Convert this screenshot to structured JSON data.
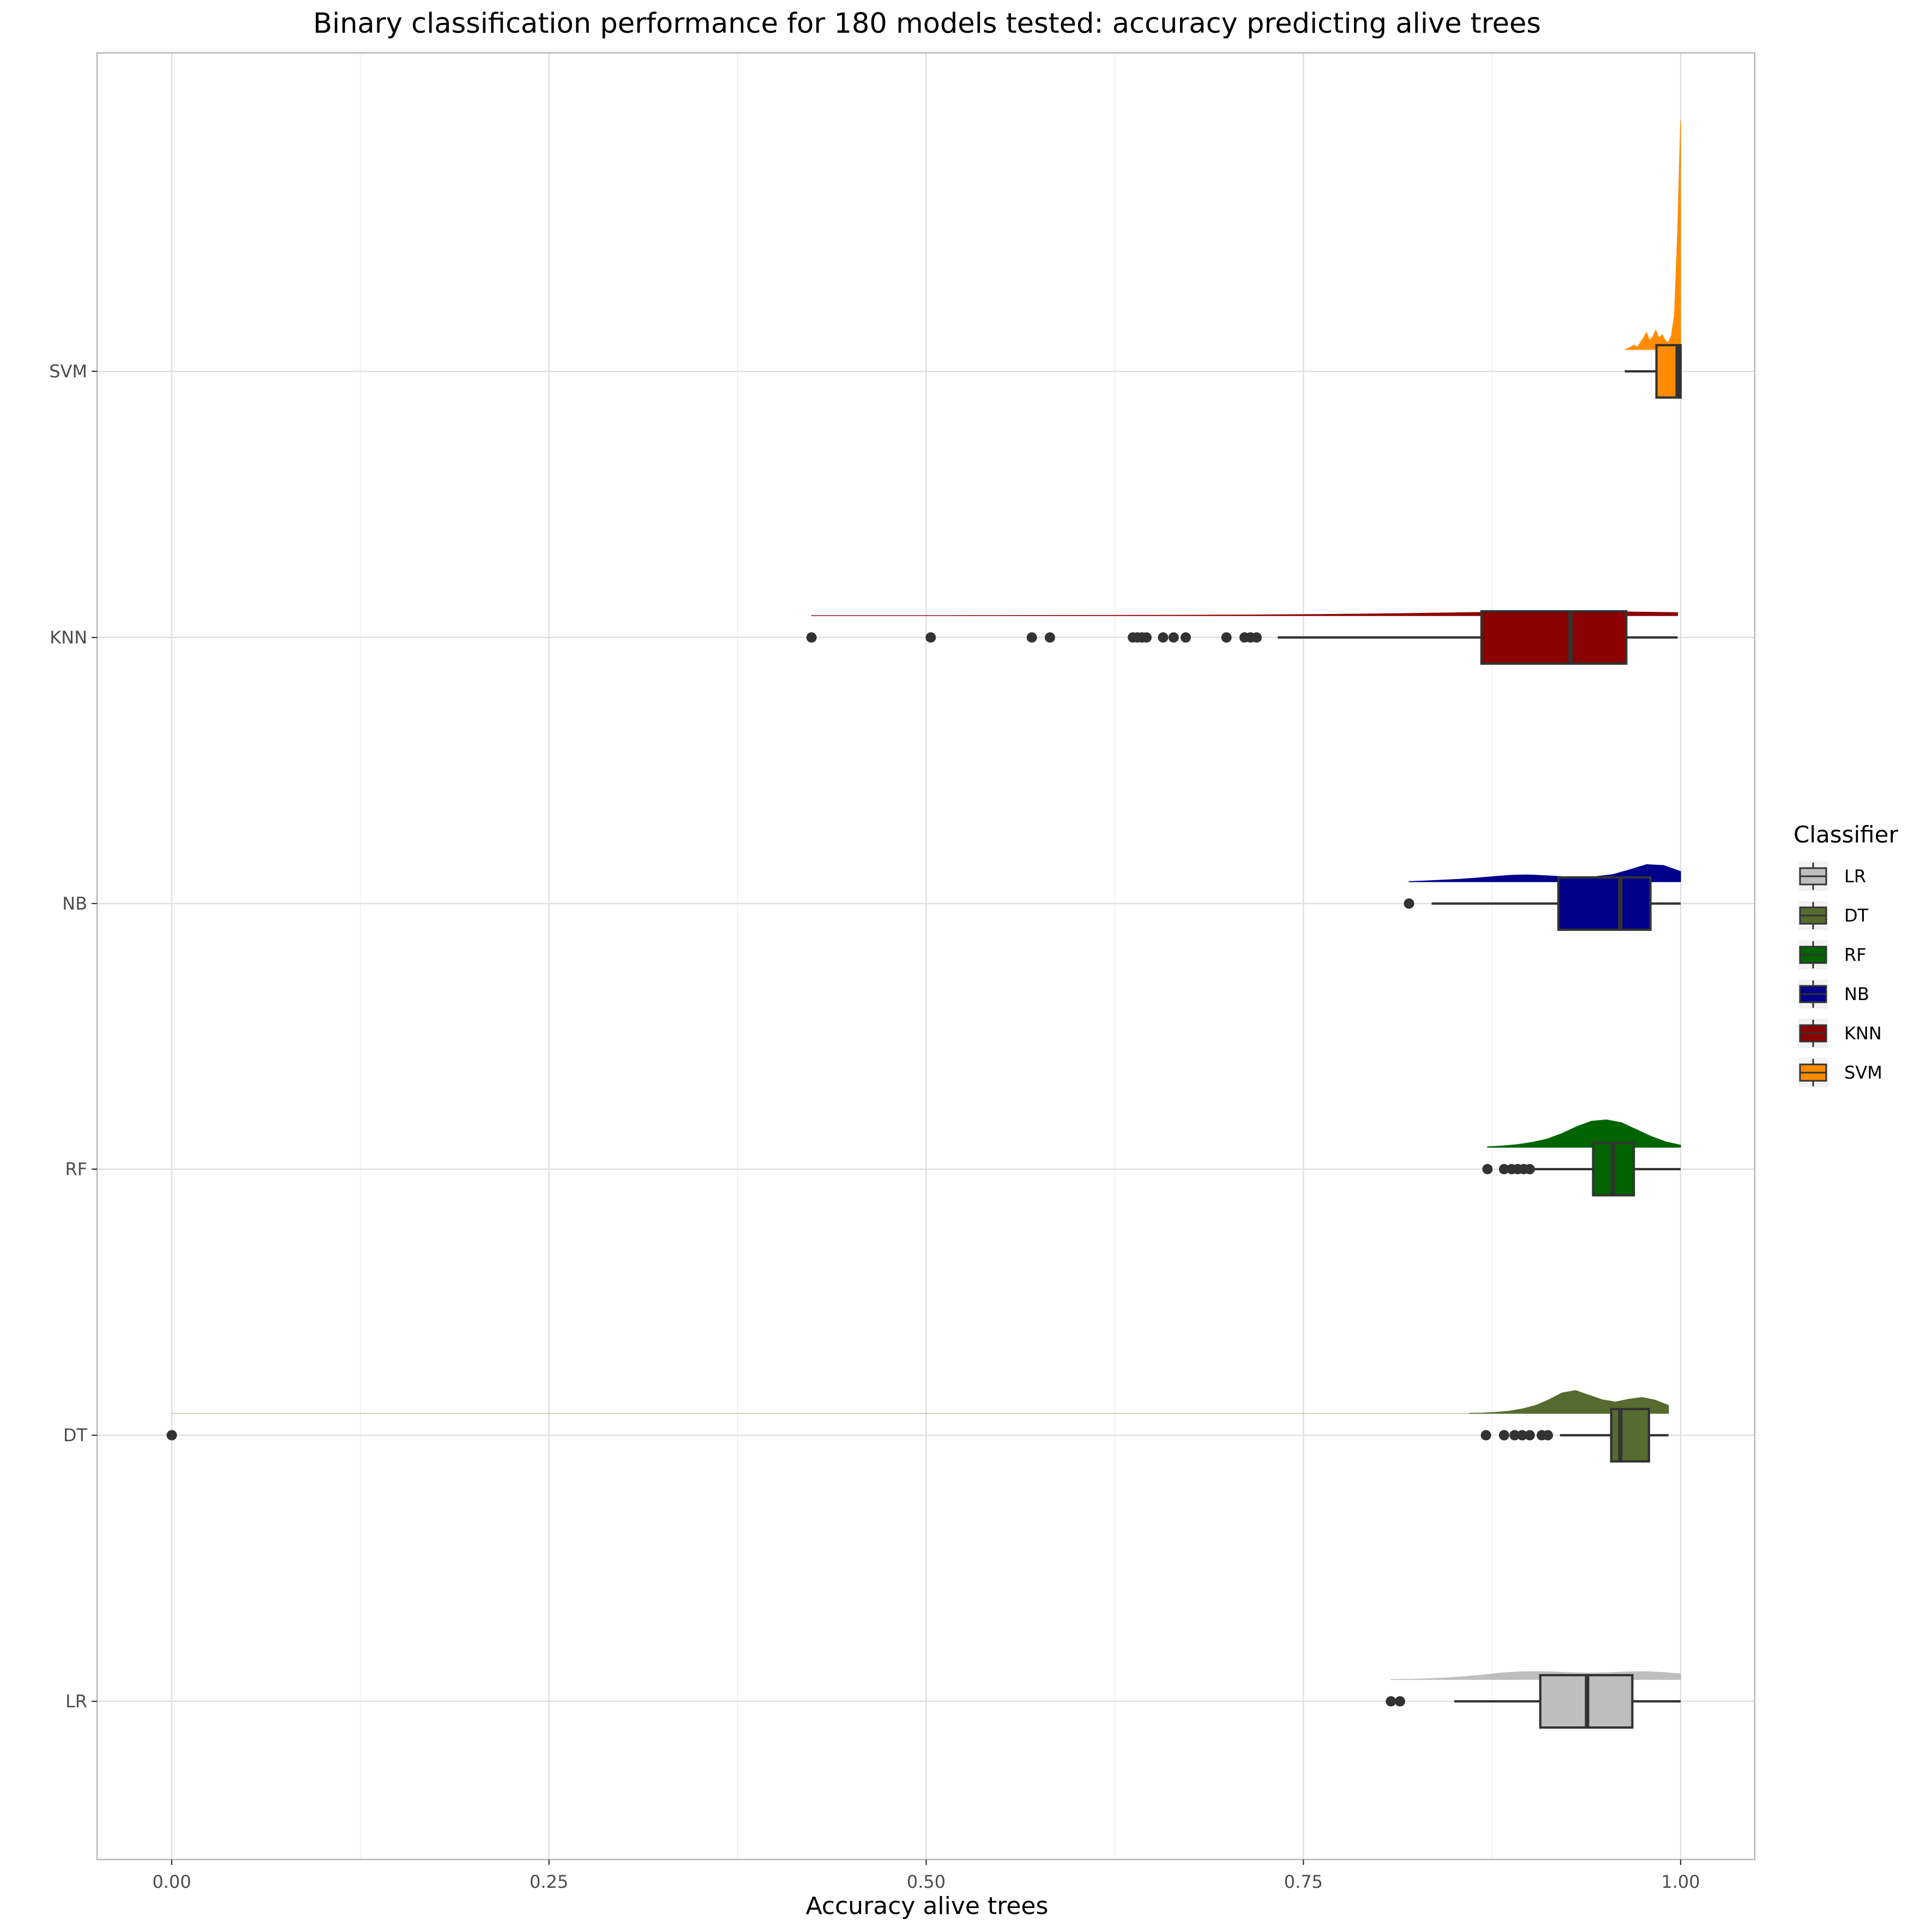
{
  "chart_data": {
    "type": "box",
    "title": "Binary classification performance for 180 models tested: accuracy predicting alive trees",
    "xlabel": "Accuracy alive trees",
    "ylabel": "",
    "xlim": [
      -0.05,
      1.05
    ],
    "xticks": [
      0.0,
      0.25,
      0.5,
      0.75,
      1.0
    ],
    "xtick_labels": [
      "0.00",
      "0.25",
      "0.50",
      "0.75",
      "1.00"
    ],
    "grid": true,
    "legend": {
      "title": "Classifier",
      "position": "right",
      "entries": [
        "LR",
        "DT",
        "RF",
        "NB",
        "KNN",
        "SVM"
      ]
    },
    "categories": [
      "LR",
      "DT",
      "RF",
      "NB",
      "KNN",
      "SVM"
    ],
    "series": [
      {
        "name": "LR",
        "color": "#bebebe",
        "min": 0.85,
        "q1": 0.907,
        "median": 0.938,
        "q3": 0.968,
        "max": 1.0,
        "outliers": [
          0.808,
          0.814
        ],
        "density_range": [
          0.808,
          1.0
        ],
        "density": [
          0.02,
          0.05,
          0.1,
          0.2,
          0.35,
          0.55,
          0.8,
          0.95,
          1.0,
          0.95,
          0.85,
          0.8,
          0.85,
          0.95,
          1.0,
          0.9,
          0.7
        ]
      },
      {
        "name": "DT",
        "color": "#556b2f",
        "min": 0.92,
        "q1": 0.954,
        "median": 0.96,
        "q3": 0.979,
        "max": 0.992,
        "outliers": [
          0.0,
          0.871,
          0.883,
          0.89,
          0.895,
          0.9,
          0.908,
          0.912
        ],
        "density_range": [
          0.0,
          0.992
        ],
        "density_main_range": [
          0.86,
          0.992
        ],
        "density": [
          0.01,
          0.02,
          0.05,
          0.1,
          0.2,
          0.35,
          0.6,
          0.9,
          1.0,
          0.8,
          0.6,
          0.5,
          0.62,
          0.7,
          0.58,
          0.35
        ]
      },
      {
        "name": "RF",
        "color": "#006400",
        "min": 0.9,
        "q1": 0.942,
        "median": 0.955,
        "q3": 0.969,
        "max": 1.0,
        "outliers": [
          0.872,
          0.883,
          0.888,
          0.892,
          0.896,
          0.9
        ],
        "density_range": [
          0.872,
          1.0
        ],
        "density": [
          0.02,
          0.05,
          0.1,
          0.18,
          0.3,
          0.5,
          0.75,
          0.95,
          1.0,
          0.9,
          0.65,
          0.4,
          0.2,
          0.08
        ]
      },
      {
        "name": "NB",
        "color": "#00008b",
        "min": 0.835,
        "q1": 0.919,
        "median": 0.96,
        "q3": 0.98,
        "max": 1.0,
        "outliers": [
          0.82
        ],
        "density_range": [
          0.82,
          1.0
        ],
        "density": [
          0.02,
          0.05,
          0.1,
          0.15,
          0.22,
          0.3,
          0.38,
          0.4,
          0.36,
          0.3,
          0.28,
          0.3,
          0.42,
          0.7,
          1.0,
          0.95,
          0.6
        ]
      },
      {
        "name": "KNN",
        "color": "#8b0000",
        "min": 0.733,
        "q1": 0.868,
        "median": 0.927,
        "q3": 0.964,
        "max": 0.998,
        "outliers": [
          0.424,
          0.503,
          0.57,
          0.582,
          0.637,
          0.64,
          0.643,
          0.646,
          0.657,
          0.664,
          0.672,
          0.699,
          0.711,
          0.715,
          0.719
        ],
        "density_range": [
          0.424,
          0.998
        ],
        "density": [
          0.01,
          0.01,
          0.02,
          0.03,
          0.04,
          0.05,
          0.06,
          0.08,
          0.1,
          0.14,
          0.2,
          0.28,
          0.38,
          0.52,
          0.68,
          0.85,
          0.96,
          1.0,
          0.9,
          0.75
        ]
      },
      {
        "name": "SVM",
        "color": "#ff8c00",
        "min": 0.963,
        "q1": 0.984,
        "median": 0.998,
        "q3": 1.0,
        "max": 1.0,
        "outliers": [],
        "density_range": [
          0.963,
          1.0
        ],
        "density": [
          0.0,
          0.005,
          0.012,
          0.02,
          0.01,
          0.03,
          0.05,
          0.075,
          0.04,
          0.055,
          0.085,
          0.05,
          0.065,
          0.04,
          0.03,
          0.06,
          0.15,
          0.5,
          1.0
        ]
      }
    ]
  }
}
